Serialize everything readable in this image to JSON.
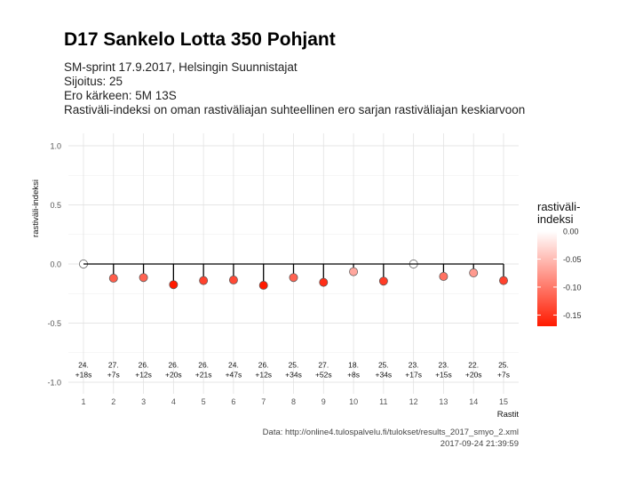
{
  "title": "D17 Sankelo Lotta 350 Pohjant",
  "subtitle_lines": [
    "SM-sprint 17.9.2017, Helsingin Suunnistajat",
    "Sijoitus: 25",
    "Ero kärkeen: 5M 13S",
    "Rastiväli-indeksi on oman rastiväliajan suhteellinen ero sarjan rastiväliajan keskiarvoon"
  ],
  "caption_lines": [
    "Data: http://online4.tulospalvelu.fi/tulokset/results_2017_smyo_2.xml",
    "2017-09-24 21:39:59"
  ],
  "legend": {
    "title_line1": "rastiväli-",
    "title_line2": "indeksi",
    "ticks": [
      "0.00",
      "-0.05",
      "-0.10",
      "-0.15"
    ],
    "tick_values": [
      0.0,
      -0.05,
      -0.1,
      -0.15
    ],
    "color_low": "#ff1a00",
    "color_high": "#ffffff",
    "range": [
      -0.17,
      0.0
    ]
  },
  "chart_data": {
    "type": "scatter",
    "xlabel": "Rastit",
    "ylabel": "rastiväli-indeksi",
    "ylim": [
      -1.0,
      1.0
    ],
    "xlim": [
      1,
      15
    ],
    "y_ticks": [
      1.0,
      0.5,
      0.0,
      -0.5,
      -1.0
    ],
    "y_tick_labels": [
      "1.0",
      "0.5",
      "0.0",
      "-0.5",
      "-1.0"
    ],
    "x": [
      1,
      2,
      3,
      4,
      5,
      6,
      7,
      8,
      9,
      10,
      11,
      12,
      13,
      14,
      15
    ],
    "x_tick_labels": [
      "1",
      "2",
      "3",
      "4",
      "5",
      "6",
      "7",
      "8",
      "9",
      "10",
      "11",
      "12",
      "13",
      "14",
      "15"
    ],
    "values": [
      0.0,
      -0.12,
      -0.115,
      -0.175,
      -0.14,
      -0.135,
      -0.18,
      -0.115,
      -0.155,
      -0.065,
      -0.145,
      0.0,
      -0.105,
      -0.075,
      -0.14
    ],
    "rank_labels": [
      "24.",
      "27.",
      "26.",
      "26.",
      "26.",
      "24.",
      "26.",
      "25.",
      "27.",
      "18.",
      "25.",
      "23.",
      "23.",
      "22.",
      "25."
    ],
    "diff_labels": [
      "+18s",
      "+7s",
      "+12s",
      "+20s",
      "+21s",
      "+47s",
      "+12s",
      "+34s",
      "+52s",
      "+8s",
      "+34s",
      "+17s",
      "+15s",
      "+20s",
      "+7s"
    ],
    "label_y": -0.9,
    "grid": true,
    "legend_position": "right"
  }
}
